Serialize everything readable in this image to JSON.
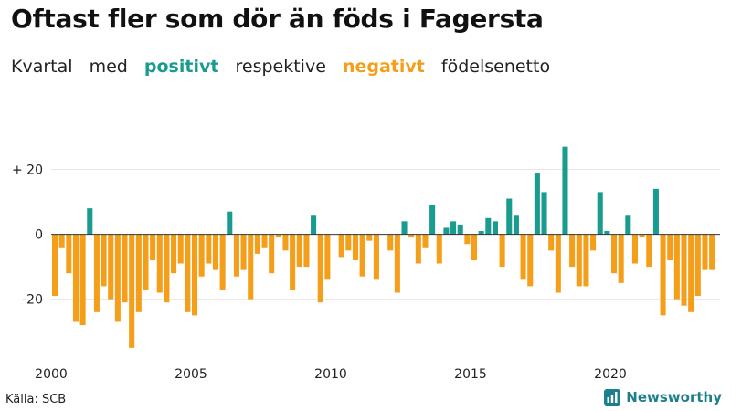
{
  "header": {
    "title": "Oftast fler som dör än föds i Fagersta",
    "subtitle_parts": [
      "Kvartal",
      "med",
      "positivt",
      "respektive",
      "negativt",
      "födelsenetto"
    ]
  },
  "footer": {
    "source": "Källa: SCB",
    "brand": "Newsworthy"
  },
  "colors": {
    "positive": "#1a9b8f",
    "negative": "#f59e1a",
    "grid": "#e6e6e6",
    "zero_line": "#333333",
    "brand": "#1c7f8c"
  },
  "chart_data": {
    "type": "bar",
    "title": "Oftast fler som dör än föds i Fagersta",
    "subtitle": "Kvartal med positivt respektive negativt födelsenetto",
    "xlabel": "",
    "ylabel": "",
    "start_year": 2000,
    "periods_per_year": 4,
    "x_ticks": [
      "2000",
      "2005",
      "2010",
      "2015",
      "2020"
    ],
    "y_ticks": [
      {
        "value": 20,
        "label": "+ 20"
      },
      {
        "value": 0,
        "label": "0"
      },
      {
        "value": -20,
        "label": "-20"
      }
    ],
    "ylim": [
      -37,
      30
    ],
    "grid": true,
    "values": [
      -19,
      -4,
      -12,
      -27,
      -28,
      8,
      -24,
      -16,
      -20,
      -27,
      -21,
      -35,
      -24,
      -17,
      -8,
      -18,
      -21,
      -12,
      -9,
      -24,
      -25,
      -13,
      -9,
      -11,
      -17,
      7,
      -13,
      -11,
      -20,
      -6,
      -4,
      -12,
      -1,
      -5,
      -17,
      -10,
      -10,
      6,
      -21,
      -14,
      0,
      -7,
      -5,
      -8,
      -13,
      -2,
      -14,
      0,
      -5,
      -18,
      4,
      -1,
      -9,
      -4,
      9,
      -9,
      2,
      4,
      3,
      -3,
      -8,
      1,
      5,
      4,
      -10,
      11,
      6,
      -14,
      -16,
      19,
      13,
      -5,
      -18,
      27,
      -10,
      -16,
      -16,
      -5,
      13,
      1,
      -12,
      -15,
      6,
      -9,
      -1,
      -10,
      14,
      -25,
      -8,
      -20,
      -22,
      -24,
      -19,
      -11,
      -11
    ]
  }
}
